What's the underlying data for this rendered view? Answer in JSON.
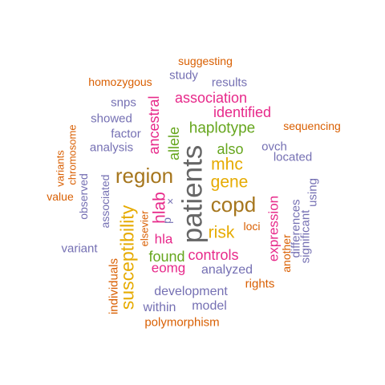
{
  "palette": {
    "orange": "#d95f02",
    "purple": "#7570b3",
    "magenta": "#e7298a",
    "green": "#66a61e",
    "gold": "#e6ab02",
    "brown": "#a6761d",
    "gray": "#666666"
  },
  "words": [
    {
      "text": "patients",
      "color": "gray",
      "vertical": true
    },
    {
      "text": "region",
      "color": "brown",
      "vertical": false
    },
    {
      "text": "copd",
      "color": "brown",
      "vertical": false
    },
    {
      "text": "susceptibility",
      "color": "gold",
      "vertical": true
    },
    {
      "text": "gene",
      "color": "gold",
      "vertical": false
    },
    {
      "text": "mhc",
      "color": "gold",
      "vertical": false
    },
    {
      "text": "risk",
      "color": "gold",
      "vertical": false
    },
    {
      "text": "hlab",
      "color": "magenta",
      "vertical": true
    },
    {
      "text": "haplotype",
      "color": "green",
      "vertical": false
    },
    {
      "text": "association",
      "color": "magenta",
      "vertical": false
    },
    {
      "text": "identified",
      "color": "magenta",
      "vertical": false
    },
    {
      "text": "allele",
      "color": "green",
      "vertical": true
    },
    {
      "text": "ancestral",
      "color": "magenta",
      "vertical": true
    },
    {
      "text": "also",
      "color": "green",
      "vertical": false
    },
    {
      "text": "found",
      "color": "green",
      "vertical": false
    },
    {
      "text": "controls",
      "color": "magenta",
      "vertical": false
    },
    {
      "text": "expression",
      "color": "magenta",
      "vertical": true
    },
    {
      "text": "eomg",
      "color": "magenta",
      "vertical": false
    },
    {
      "text": "hla",
      "color": "magenta",
      "vertical": false
    },
    {
      "text": "analyzed",
      "color": "purple",
      "vertical": false
    },
    {
      "text": "development",
      "color": "purple",
      "vertical": false
    },
    {
      "text": "model",
      "color": "purple",
      "vertical": false
    },
    {
      "text": "within",
      "color": "purple",
      "vertical": false
    },
    {
      "text": "polymorphism",
      "color": "orange",
      "vertical": false
    },
    {
      "text": "individuals",
      "color": "orange",
      "vertical": true
    },
    {
      "text": "rights",
      "color": "orange",
      "vertical": false
    },
    {
      "text": "another",
      "color": "orange",
      "vertical": true
    },
    {
      "text": "differences",
      "color": "purple",
      "vertical": true
    },
    {
      "text": "significant",
      "color": "purple",
      "vertical": true
    },
    {
      "text": "using",
      "color": "purple",
      "vertical": true
    },
    {
      "text": "located",
      "color": "purple",
      "vertical": false
    },
    {
      "text": "ovch",
      "color": "purple",
      "vertical": false
    },
    {
      "text": "sequencing",
      "color": "orange",
      "vertical": false
    },
    {
      "text": "loci",
      "color": "orange",
      "vertical": false
    },
    {
      "text": "results",
      "color": "purple",
      "vertical": false
    },
    {
      "text": "study",
      "color": "purple",
      "vertical": false
    },
    {
      "text": "suggesting",
      "color": "orange",
      "vertical": false
    },
    {
      "text": "homozygous",
      "color": "orange",
      "vertical": false
    },
    {
      "text": "snps",
      "color": "purple",
      "vertical": false
    },
    {
      "text": "showed",
      "color": "purple",
      "vertical": false
    },
    {
      "text": "factor",
      "color": "purple",
      "vertical": false
    },
    {
      "text": "analysis",
      "color": "purple",
      "vertical": false
    },
    {
      "text": "chromosome",
      "color": "orange",
      "vertical": true
    },
    {
      "text": "variants",
      "color": "orange",
      "vertical": true
    },
    {
      "text": "value",
      "color": "orange",
      "vertical": false
    },
    {
      "text": "observed",
      "color": "purple",
      "vertical": true
    },
    {
      "text": "associated",
      "color": "purple",
      "vertical": true
    },
    {
      "text": "variant",
      "color": "purple",
      "vertical": false
    },
    {
      "text": "elsevier",
      "color": "orange",
      "vertical": true
    },
    {
      "text": "p",
      "color": "purple",
      "vertical": true
    },
    {
      "text": "×",
      "color": "purple",
      "vertical": true
    }
  ]
}
